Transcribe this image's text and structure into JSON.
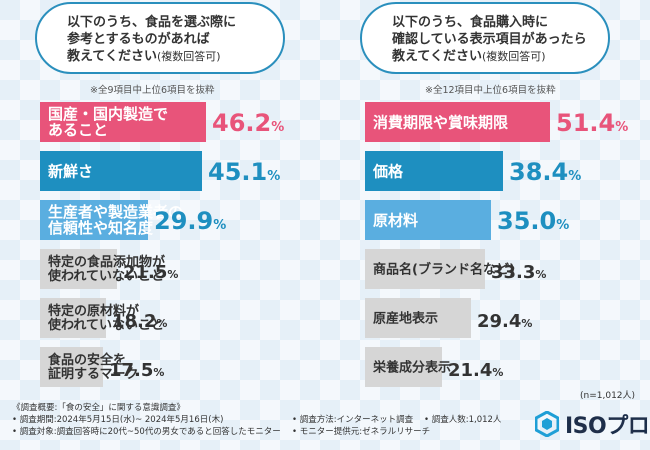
{
  "left_panel": {
    "question_lines": [
      "以下のうち、食品を選ぶ際に",
      "参考とするものがあれば",
      "教えてください"
    ],
    "question_note": "(複数回答可)",
    "scope_note": "※全9項目中上位6項目を抜粋"
  },
  "right_panel": {
    "question_lines": [
      "以下のうち、食品購入時に",
      "確認している表示項目があったら",
      "教えてください"
    ],
    "question_note": "(複数回答可)",
    "scope_note": "※全12項目中上位6項目を抜粋"
  },
  "sample_size": "(n=1,012人)",
  "colors": {
    "rank1": "#e8547a",
    "rank2": "#1e8fc0",
    "rank3": "#5aaee0",
    "rank_other": "#d6d6d6",
    "value_rank1": "#e8547a",
    "value_rank2": "#1e8fc0",
    "value_rank3": "#1e8fc0",
    "value_other": "#333333",
    "question_border": "#2a8fbd"
  },
  "chart_data": [
    {
      "type": "bar",
      "orientation": "horizontal",
      "categories": [
        "国産・国内製造であること",
        "新鮮さ",
        "生産者や製造業者の信頼性や知名度",
        "特定の食品添加物が使われていないこと",
        "特定の原材料が使われていないこと",
        "食品の安全を証明するマーク"
      ],
      "category_lines": [
        [
          "国産・国内製造で",
          "あること"
        ],
        [
          "新鮮さ"
        ],
        [
          "生産者や製造業者の",
          "信頼性や知名度"
        ],
        [
          "特定の食品添加物が",
          "使われていないこと"
        ],
        [
          "特定の原材料が",
          "使われていないこと"
        ],
        [
          "食品の安全を",
          "証明するマーク"
        ]
      ],
      "values": [
        46.2,
        45.1,
        29.9,
        21.5,
        18.2,
        17.5
      ],
      "value_labels": [
        [
          "46.2",
          "%"
        ],
        [
          "45.1",
          "%"
        ],
        [
          "29.9",
          "%"
        ],
        [
          "21.5",
          "%"
        ],
        [
          "18.2",
          "%"
        ],
        [
          "17.5",
          "%"
        ]
      ],
      "unit": "%"
    },
    {
      "type": "bar",
      "orientation": "horizontal",
      "categories": [
        "消費期限や賞味期限",
        "価格",
        "原材料",
        "商品名(ブランド名など)",
        "原産地表示",
        "栄養成分表示"
      ],
      "category_lines": [
        [
          "消費期限や賞味期限"
        ],
        [
          "価格"
        ],
        [
          "原材料"
        ],
        [
          "商品名(ブランド名など)"
        ],
        [
          "原産地表示"
        ],
        [
          "栄養成分表示"
        ]
      ],
      "values": [
        51.4,
        38.4,
        35.0,
        33.3,
        29.4,
        21.4
      ],
      "value_labels": [
        [
          "51.4",
          "%"
        ],
        [
          "38.4",
          "%"
        ],
        [
          "35.0",
          "%"
        ],
        [
          "33.3",
          "%"
        ],
        [
          "29.4",
          "%"
        ],
        [
          "21.4",
          "%"
        ]
      ],
      "unit": "%"
    }
  ],
  "footer": {
    "summary": "《調査概要:「食の安全」に関する意識調査》",
    "period": "• 調査期間:2024年5月15日(水)~ 2024年5月16日(木)",
    "target": "• 調査対象:調査回答時に20代~50代の男女であると回答したモニター",
    "method": "• 調査方法:インターネット調査",
    "respondents": "• 調査人数:1,012人",
    "provider": "• モニター提供元:ゼネラルリサーチ"
  },
  "logo": {
    "text": "ISOプロ",
    "icon": "hexagon-logo-icon"
  }
}
